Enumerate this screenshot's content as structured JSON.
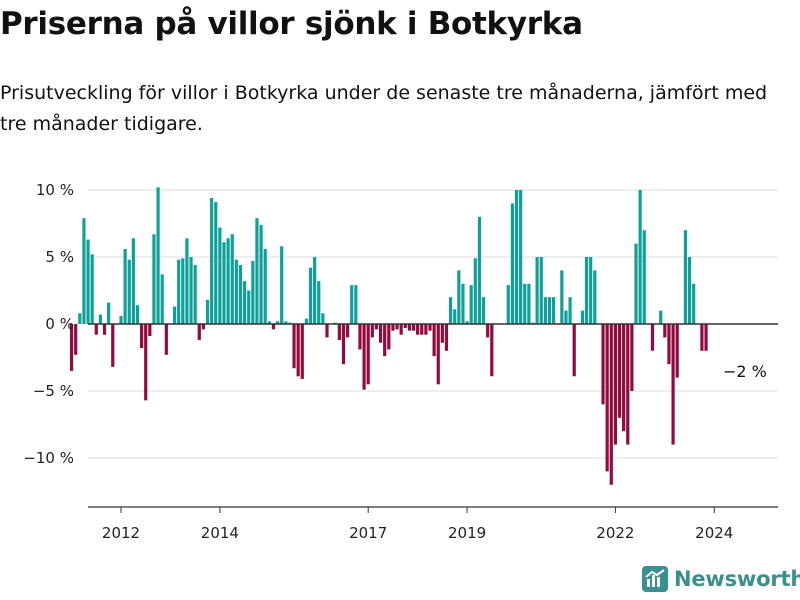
{
  "header": {
    "title": "Priserna på villor sjönk i Botkyrka",
    "subtitle": "Prisutveckling för villor i Botkyrka under de senaste tre månaderna, jämfört med tre månader tidigare."
  },
  "brand": {
    "name": "Newsworthy",
    "color": "#3a8f8f"
  },
  "colors": {
    "positive": "#0fa198",
    "negative": "#930a3f",
    "grid": "#dddddd",
    "axis": "#333333"
  },
  "chart_data": {
    "type": "bar",
    "title": "Priserna på villor sjönk i Botkyrka",
    "xlabel": "",
    "ylabel": "",
    "unit": "%",
    "ylim": [
      -13.5,
      10
    ],
    "y_ticks": [
      10,
      5,
      0,
      -5,
      -10
    ],
    "y_tick_labels": [
      "10 %",
      "5 %",
      "0 %",
      "−5 %",
      "−10 %"
    ],
    "x_tick_labels": [
      "2012",
      "2014",
      "2017",
      "2019",
      "2022",
      "2024"
    ],
    "x_tick_months": [
      12,
      36,
      72,
      96,
      132,
      156
    ],
    "start": "2011-01",
    "grid": true,
    "end_label": "−2 %",
    "values": [
      -3.5,
      -2.3,
      0.8,
      7.9,
      6.3,
      5.2,
      -0.8,
      0.7,
      -0.8,
      1.6,
      -3.2,
      0,
      0.6,
      5.6,
      4.8,
      6.4,
      1.4,
      -1.8,
      -5.7,
      -0.9,
      6.7,
      10.2,
      3.7,
      -2.3,
      0,
      1.3,
      4.8,
      4.9,
      6.4,
      5.0,
      4.4,
      -1.2,
      -0.4,
      1.8,
      9.4,
      9.1,
      7.2,
      6.1,
      6.4,
      6.7,
      4.8,
      4.4,
      3.2,
      2.5,
      4.7,
      7.9,
      7.4,
      5.6,
      0.2,
      -0.4,
      0.2,
      5.8,
      0.2,
      0.1,
      -3.3,
      -3.9,
      -4.1,
      0.4,
      4.2,
      5.0,
      3.2,
      0.8,
      -1.0,
      0,
      0.1,
      -1.2,
      -3.0,
      -1.0,
      2.9,
      2.9,
      -1.9,
      -4.9,
      -4.5,
      -1.0,
      -0.4,
      -1.4,
      -2.4,
      -1.9,
      -0.5,
      -0.4,
      -0.8,
      -0.3,
      -0.5,
      -0.5,
      -0.8,
      -0.8,
      -0.8,
      -0.5,
      -2.4,
      -4.5,
      -1.4,
      -2.0,
      2.0,
      1.1,
      4.0,
      3.0,
      0.2,
      2.9,
      4.9,
      8.0,
      2.0,
      -1.0,
      -3.9,
      0,
      0,
      0,
      2.9,
      9.0,
      10.0,
      10.0,
      3.0,
      3.0,
      0.1,
      5.0,
      5.0,
      2.0,
      2.0,
      2.0,
      0,
      4.0,
      1.0,
      2.0,
      -3.9,
      0,
      1.0,
      5.0,
      5.0,
      4.0,
      0,
      -6.0,
      -11.0,
      -12.0,
      -9.0,
      -7.0,
      -8.0,
      -9.0,
      -5.0,
      6.0,
      10.0,
      7.0,
      0,
      -2.0,
      0,
      1.0,
      -1.0,
      -3.0,
      -9.0,
      -4.0,
      0,
      7.0,
      5.0,
      3.0,
      0,
      -2.0,
      -2.0
    ]
  }
}
